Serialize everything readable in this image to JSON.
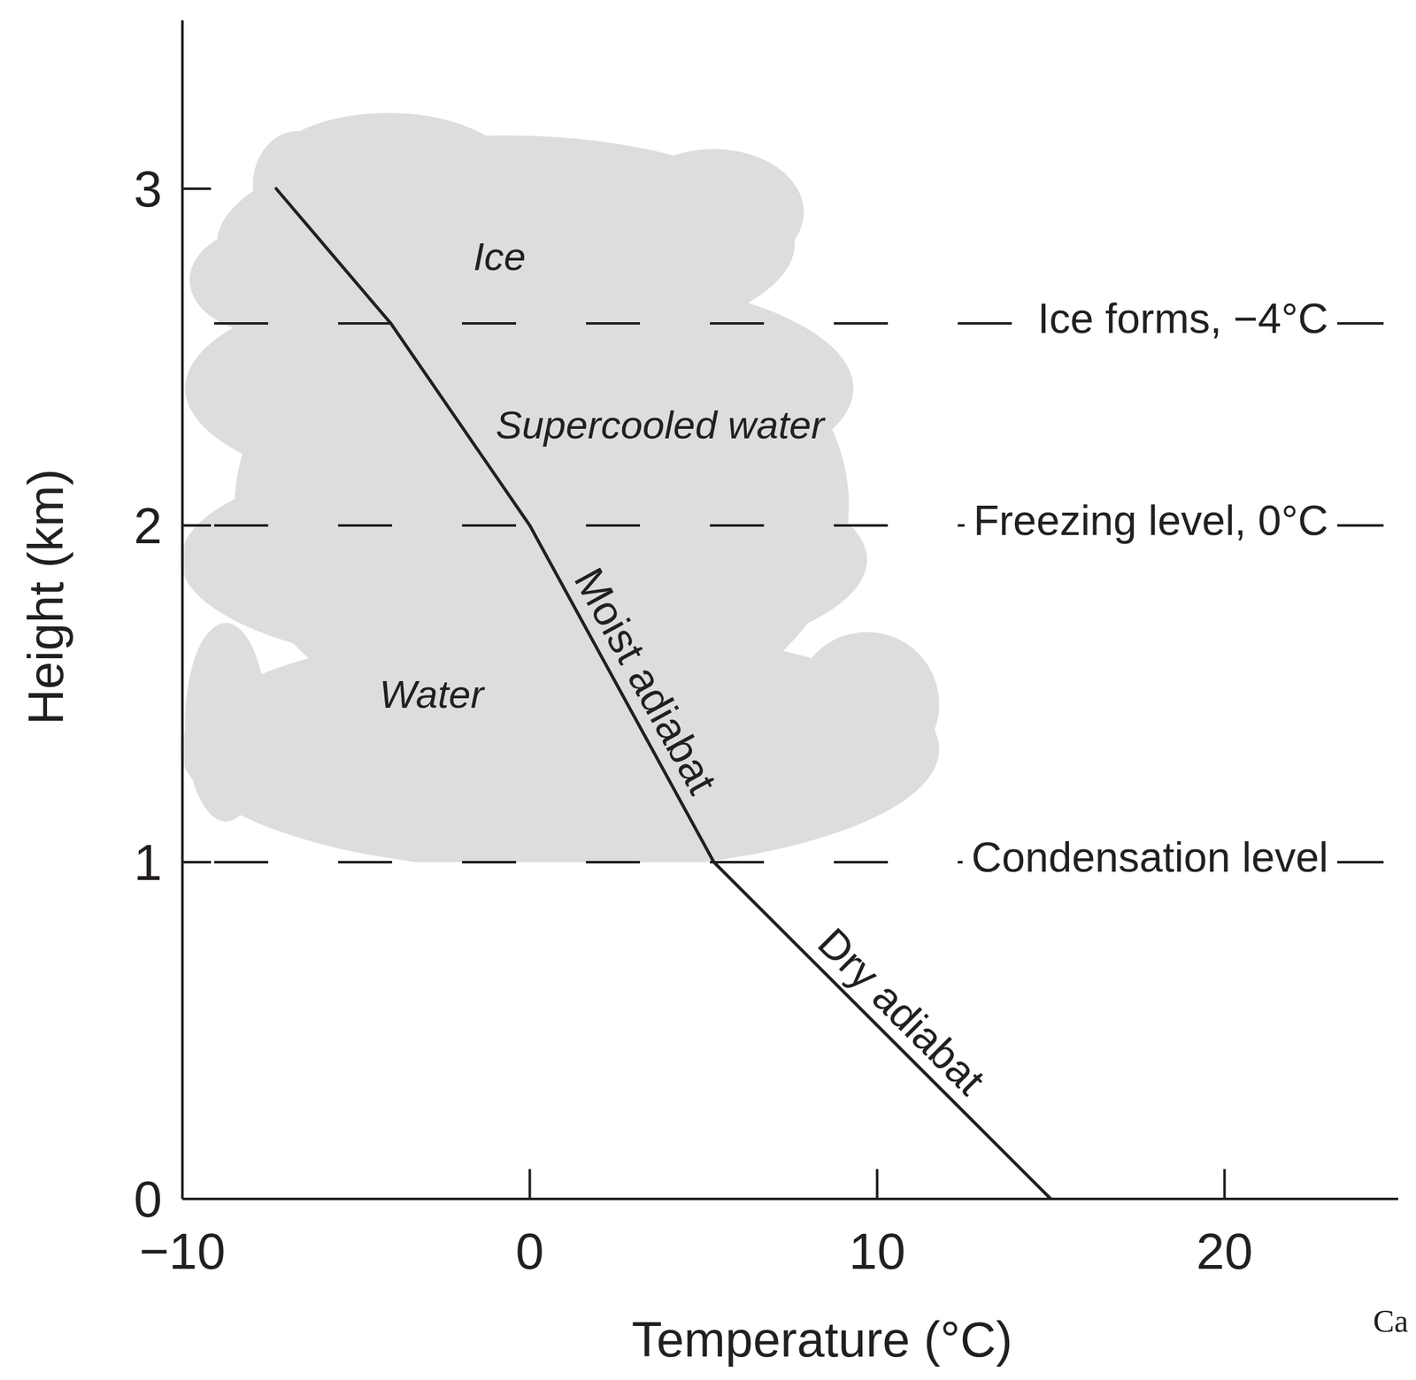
{
  "chart_data": {
    "type": "line",
    "xlabel": "Temperature (°C)",
    "ylabel": "Height (km)",
    "series": [
      {
        "name": "Dry adiabat",
        "color": "#231f20",
        "x": [
          15,
          5.3
        ],
        "values": [
          0,
          1
        ]
      },
      {
        "name": "Moist adiabat",
        "color": "#231f20",
        "x": [
          5.3,
          0,
          -4,
          -7.3
        ],
        "values": [
          1,
          2,
          2.6,
          3
        ]
      }
    ],
    "xlim": [
      -10,
      25
    ],
    "xticks": [
      {
        "value": -10,
        "label": "−10"
      },
      0,
      10,
      20
    ],
    "ylim": [
      0,
      3.5
    ],
    "yticks": [
      0,
      1,
      2,
      3
    ],
    "grid": false,
    "levels": [
      {
        "label": "Condensation level",
        "height": 1
      },
      {
        "label": "Freezing level, 0°C",
        "height": 2
      },
      {
        "label": "Ice forms, −4°C",
        "height": 2.6
      }
    ],
    "zones": [
      "Water",
      "Supercooled water",
      "Ice"
    ],
    "credit": "Ca"
  }
}
